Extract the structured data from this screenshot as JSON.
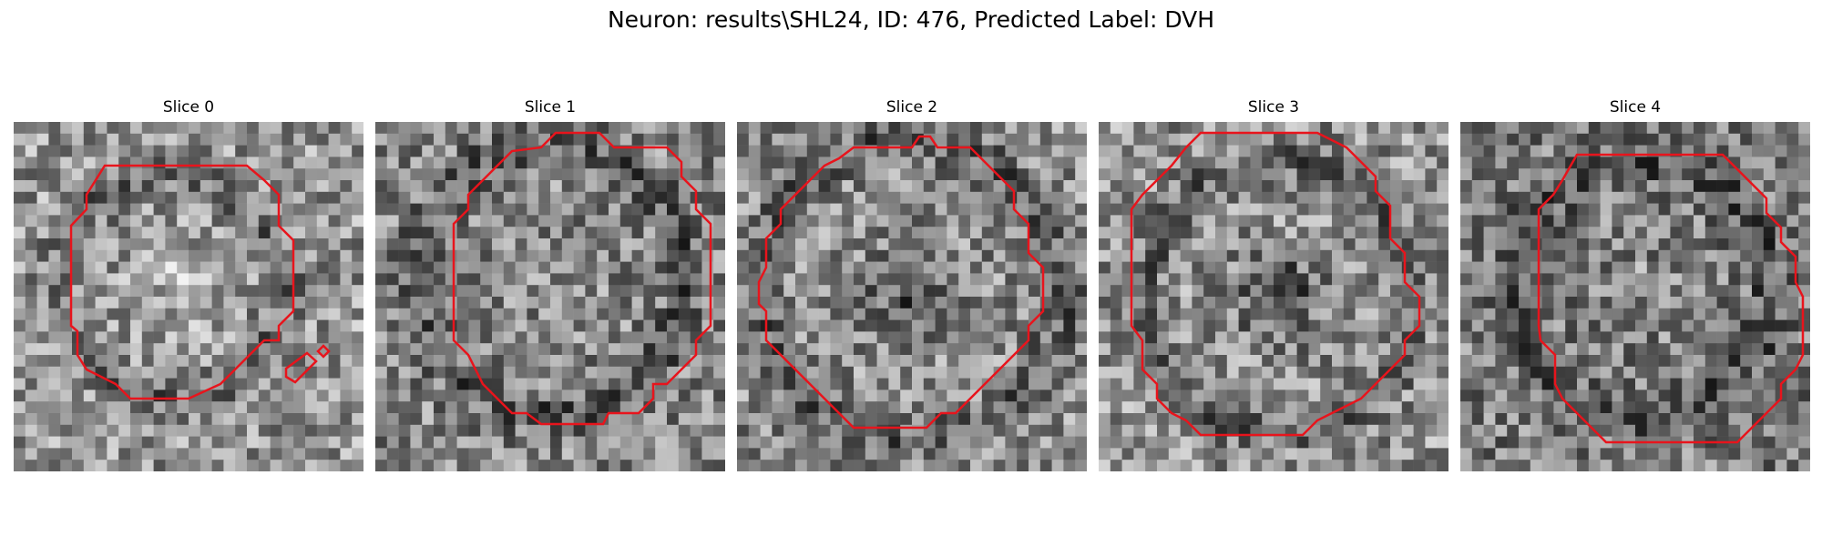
{
  "figure": {
    "title": "Neuron: results\\SHL24, ID: 476, Predicted Label: DVH",
    "contour_color": "#e8141c"
  },
  "slices": [
    {
      "title": "Slice 0"
    },
    {
      "title": "Slice 1"
    },
    {
      "title": "Slice 2"
    },
    {
      "title": "Slice 3"
    },
    {
      "title": "Slice 4"
    }
  ]
}
